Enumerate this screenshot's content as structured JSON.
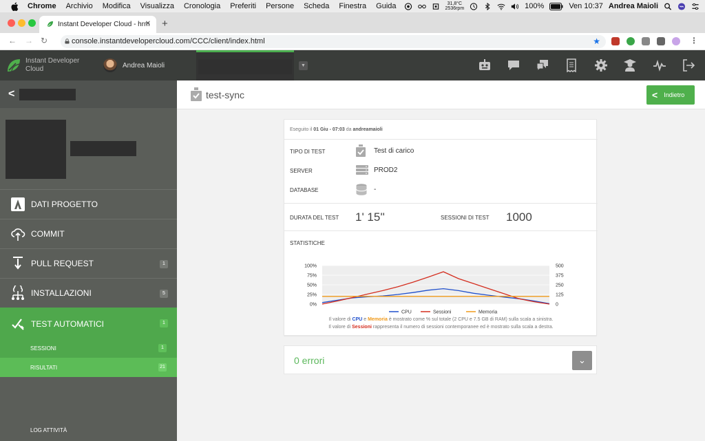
{
  "mac_menu": {
    "app": "Chrome",
    "items": [
      "Archivio",
      "Modifica",
      "Visualizza",
      "Cronologia",
      "Preferiti",
      "Persone",
      "Scheda",
      "Finestra",
      "Guida"
    ],
    "temp_top": "31,8°C",
    "temp_bottom": "2536rpm",
    "battery": "100%",
    "datetime": "Ven 10:37",
    "user": "Andrea Maioli"
  },
  "browser": {
    "tab_title": "Instant Developer Cloud - hrm",
    "url": "console.instantdevelopercloud.com/CCC/client/index.html"
  },
  "header": {
    "brand_line1": "Instant Developer",
    "brand_line2": "Cloud",
    "user": "Andrea Maioli"
  },
  "sidebar": {
    "menu": [
      {
        "label": "DATI PROGETTO",
        "badge": ""
      },
      {
        "label": "COMMIT",
        "badge": ""
      },
      {
        "label": "PULL REQUEST",
        "badge": "1"
      },
      {
        "label": "INSTALLAZIONI",
        "badge": "5"
      },
      {
        "label": "TEST AUTOMATICI",
        "badge": "1"
      }
    ],
    "sub": [
      {
        "label": "SESSIONI",
        "badge": "1"
      },
      {
        "label": "RISULTATI",
        "badge": "21"
      }
    ],
    "log": "LOG ATTIVITÀ"
  },
  "content": {
    "title": "test-sync",
    "back_label": "Indietro",
    "exec_prefix": "Eseguito il",
    "exec_date": "01 Giu - 07:03",
    "exec_mid": "da",
    "exec_user": "andreamaioli",
    "fields": {
      "tipo_label": "TIPO DI TEST",
      "tipo_value": "Test di carico",
      "server_label": "SERVER",
      "server_value": "PROD2",
      "db_label": "DATABASE",
      "db_value": "-"
    },
    "durata_label": "DURATA DEL TEST",
    "durata_value": "1' 15''",
    "sessioni_label": "SESSIONI DI TEST",
    "sessioni_value": "1000",
    "stat_label": "STATISTICHE",
    "note1": [
      "Il valore di ",
      "CPU",
      " e ",
      "Memoria",
      " è mostrato come % sul totale (2 CPU e 7.5 GB di RAM) sulla scala a sinistra."
    ],
    "note2": [
      "Il valore di ",
      "Sessioni",
      " rappresenta il numero di sessioni contemporanee ed è mostrato sulla scala a destra."
    ],
    "errors": "0 errori"
  },
  "chart_data": {
    "type": "line",
    "x": [
      0,
      5,
      10,
      15,
      20,
      25,
      30,
      35,
      40,
      45,
      50,
      55,
      60,
      65,
      70,
      75
    ],
    "left_ticks": [
      "100%",
      "75%",
      "50%",
      "25%",
      "0%"
    ],
    "right_ticks": [
      "500",
      "375",
      "250",
      "125",
      "0"
    ],
    "ylim_left": [
      0,
      100
    ],
    "ylim_right": [
      0,
      500
    ],
    "series": [
      {
        "name": "CPU",
        "axis": "left",
        "color": "#1f4fcc",
        "values": [
          4,
          10,
          16,
          19,
          21,
          25,
          30,
          36,
          40,
          35,
          28,
          23,
          18,
          14,
          8,
          1
        ]
      },
      {
        "name": "Sessioni",
        "axis": "right",
        "color": "#d42d1e",
        "values": [
          0,
          40,
          85,
          130,
          175,
          225,
          285,
          350,
          420,
          330,
          265,
          200,
          135,
          70,
          30,
          0
        ]
      },
      {
        "name": "Memoria",
        "axis": "left",
        "color": "#f09a1a",
        "values": [
          20,
          20,
          20,
          20,
          20,
          20,
          20,
          20,
          20,
          20,
          20,
          20,
          20,
          20,
          20,
          20
        ]
      }
    ],
    "legend_position": "bottom"
  },
  "colors": {
    "accent": "#4fb04c",
    "header": "#3a3d3a",
    "sidebar": "#5b5e59"
  }
}
